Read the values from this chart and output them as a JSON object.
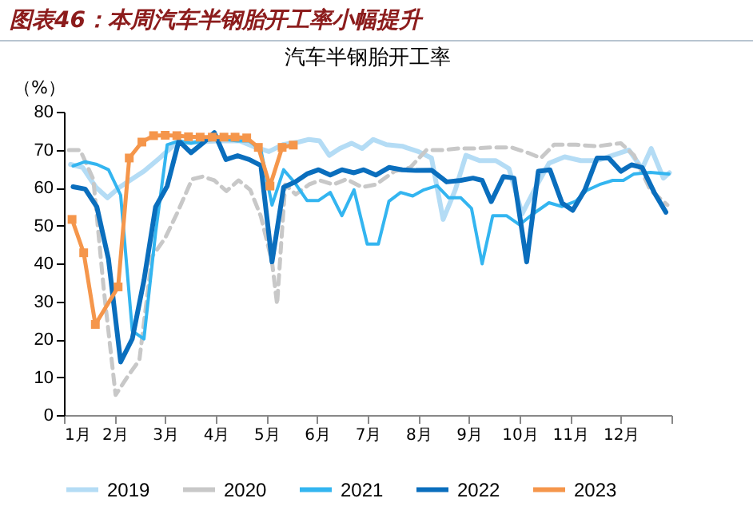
{
  "chart_data": {
    "type": "line",
    "title": "图表46：本周汽车半钢胎开工率小幅提升",
    "subtitle": "汽车半钢胎开工率",
    "ylabel": "（%）",
    "xlim": [
      1,
      13
    ],
    "xticks": [
      {
        "value": 1,
        "label": "1月"
      },
      {
        "value": 2,
        "label": "2月"
      },
      {
        "value": 3,
        "label": "3月"
      },
      {
        "value": 4,
        "label": "4月"
      },
      {
        "value": 5,
        "label": "5月"
      },
      {
        "value": 6,
        "label": "6月"
      },
      {
        "value": 7,
        "label": "7月"
      },
      {
        "value": 8,
        "label": "8月"
      },
      {
        "value": 9,
        "label": "9月"
      },
      {
        "value": 10,
        "label": "10月"
      },
      {
        "value": 11,
        "label": "11月"
      },
      {
        "value": 12,
        "label": "12月"
      },
      {
        "value": 13,
        "label": null
      }
    ],
    "ylim": [
      0,
      80
    ],
    "yticks": [
      0,
      10,
      20,
      30,
      40,
      50,
      60,
      70,
      80
    ],
    "grid": false,
    "legend": "bottom",
    "series": [
      {
        "name": "2019",
        "color": "#b4dcf5",
        "line_style": "solid",
        "marker": "none",
        "x": [
          1.13,
          1.37,
          1.63,
          1.86,
          2.1,
          2.58,
          2.89,
          3.21,
          3.63,
          4.05,
          4.47,
          4.79,
          5.05,
          5.32,
          5.63,
          5.84,
          6.05,
          6.24,
          6.45,
          6.68,
          6.89,
          7.11,
          7.37,
          7.68,
          8.0,
          8.26,
          8.49,
          8.73,
          8.94,
          9.21,
          9.53,
          9.79,
          10.05,
          10.32,
          10.58,
          10.89,
          11.21,
          11.53,
          11.84,
          12.16,
          12.42,
          12.6,
          12.84,
          12.96
        ],
        "values": [
          66.1,
          65.3,
          60.1,
          57.3,
          60.1,
          64.3,
          67.8,
          71.7,
          72.0,
          72.3,
          72.3,
          70.6,
          69.5,
          71.3,
          72.0,
          72.7,
          72.3,
          68.5,
          70.3,
          71.7,
          70.3,
          72.7,
          71.3,
          70.9,
          69.5,
          67.8,
          51.6,
          59.4,
          68.5,
          67.1,
          67.1,
          65.0,
          53.1,
          60.1,
          66.4,
          68.1,
          67.1,
          67.1,
          68.5,
          69.9,
          65.0,
          70.3,
          62.5,
          63.9
        ]
      },
      {
        "name": "2020",
        "color": "#c8c8c8",
        "line_style": "dashed",
        "marker": "none",
        "x": [
          1.1,
          1.32,
          1.58,
          1.79,
          2.02,
          2.26,
          2.49,
          2.74,
          3.0,
          3.23,
          3.53,
          3.74,
          3.97,
          4.21,
          4.45,
          4.68,
          4.89,
          5.11,
          5.21,
          5.37,
          5.58,
          5.84,
          6.05,
          6.32,
          6.58,
          6.89,
          7.16,
          7.53,
          7.84,
          8.16,
          8.47,
          8.79,
          9.11,
          9.47,
          9.84,
          10.16,
          10.42,
          10.68,
          11.11,
          11.53,
          12.0,
          12.26,
          12.58,
          12.92
        ],
        "values": [
          69.9,
          69.9,
          62.2,
          32.7,
          5.3,
          10.2,
          14.5,
          41.8,
          46.7,
          53.1,
          62.2,
          62.9,
          61.9,
          59.1,
          61.9,
          59.4,
          52.4,
          40.4,
          29.2,
          60.8,
          58.2,
          60.8,
          61.9,
          60.8,
          62.2,
          60.1,
          60.8,
          64.3,
          65.3,
          69.9,
          69.9,
          70.3,
          70.3,
          70.6,
          70.6,
          69.2,
          67.8,
          71.3,
          71.3,
          70.9,
          71.7,
          68.5,
          59.4,
          55.4
        ]
      },
      {
        "name": "2021",
        "color": "#33b5f0",
        "line_style": "solid",
        "marker": "none",
        "x": [
          1.18,
          1.42,
          1.65,
          1.88,
          2.12,
          2.35,
          2.58,
          2.81,
          3.04,
          3.27,
          3.51,
          3.74,
          3.97,
          4.2,
          4.43,
          4.66,
          4.89,
          5.11,
          5.34,
          5.57,
          5.8,
          6.03,
          6.26,
          6.49,
          6.73,
          6.99,
          7.21,
          7.42,
          7.65,
          7.89,
          8.11,
          8.37,
          8.6,
          8.84,
          9.05,
          9.26,
          9.47,
          9.74,
          10.0,
          10.26,
          10.58,
          10.84,
          11.11,
          11.32,
          11.58,
          11.84,
          12.05,
          12.26,
          12.58,
          12.95
        ],
        "values": [
          65.7,
          66.8,
          66.1,
          64.7,
          58.0,
          22.2,
          20.1,
          48.1,
          71.3,
          72.3,
          71.7,
          72.3,
          72.7,
          72.7,
          72.3,
          72.3,
          69.9,
          55.4,
          64.7,
          61.1,
          56.6,
          56.6,
          58.7,
          52.6,
          59.4,
          45.1,
          45.1,
          56.4,
          58.7,
          57.8,
          59.4,
          60.5,
          57.3,
          57.3,
          54.5,
          39.9,
          52.6,
          52.6,
          50.2,
          53.0,
          56.0,
          55.0,
          56.4,
          59.2,
          60.8,
          61.9,
          61.9,
          63.6,
          64.0,
          63.6
        ]
      },
      {
        "name": "2022",
        "color": "#0a6ebd",
        "line_style": "solid",
        "marker": "none",
        "x": [
          1.18,
          1.42,
          1.65,
          1.88,
          2.12,
          2.35,
          2.58,
          2.81,
          3.04,
          3.27,
          3.51,
          3.74,
          3.97,
          4.2,
          4.43,
          4.66,
          4.89,
          5.11,
          5.34,
          5.57,
          5.8,
          6.03,
          6.26,
          6.49,
          6.73,
          6.92,
          7.16,
          7.42,
          7.68,
          7.95,
          8.26,
          8.56,
          8.84,
          9.08,
          9.26,
          9.44,
          9.68,
          9.89,
          10.14,
          10.37,
          10.6,
          10.84,
          11.05,
          11.29,
          11.53,
          11.76,
          12.0,
          12.21,
          12.42,
          12.66,
          12.89
        ],
        "values": [
          60.2,
          59.6,
          54.9,
          41.1,
          14.0,
          20.1,
          35.5,
          54.9,
          60.4,
          72.3,
          69.2,
          71.7,
          74.5,
          67.4,
          68.4,
          67.4,
          65.8,
          40.4,
          60.1,
          61.5,
          63.6,
          64.7,
          63.3,
          64.7,
          63.9,
          64.7,
          63.3,
          65.3,
          64.7,
          64.5,
          64.6,
          61.5,
          61.9,
          62.5,
          61.9,
          56.3,
          62.9,
          62.5,
          40.4,
          64.3,
          64.7,
          55.9,
          54.0,
          59.4,
          67.8,
          67.8,
          64.3,
          66.0,
          65.3,
          58.7,
          53.5
        ]
      },
      {
        "name": "2023",
        "color": "#f5964b",
        "line_style": "solid",
        "marker": "square",
        "x": [
          1.16,
          1.39,
          1.62,
          2.07,
          2.29,
          2.54,
          2.77,
          3.0,
          3.23,
          3.46,
          3.69,
          3.93,
          4.16,
          4.38,
          4.61,
          4.84,
          5.07,
          5.31,
          5.53
        ],
        "values": [
          51.6,
          42.8,
          23.9,
          33.8,
          67.8,
          72.0,
          73.7,
          73.8,
          73.7,
          73.4,
          73.3,
          73.3,
          73.3,
          73.3,
          73.1,
          70.6,
          60.4,
          70.6,
          71.2
        ]
      }
    ]
  }
}
